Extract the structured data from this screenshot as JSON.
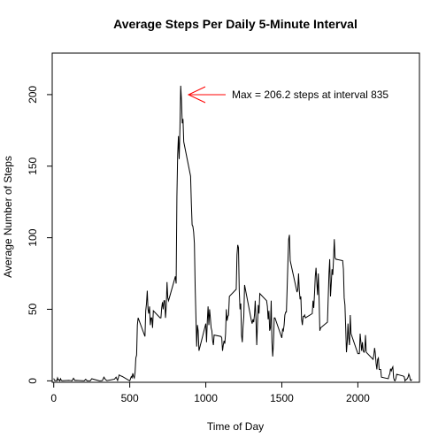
{
  "chart_data": {
    "type": "line",
    "title": "Average Steps Per Daily 5-Minute Interval",
    "xlabel": "Time of Day",
    "ylabel": "Average Number of Steps",
    "annotation": {
      "text": "Max = 206.2 steps at interval 835",
      "color": "#ff0000"
    },
    "color": "#000000",
    "xlim": [
      -10,
      2405
    ],
    "ylim": [
      -1,
      229
    ],
    "xticks": [
      0,
      500,
      1000,
      1500,
      2000
    ],
    "yticks": [
      0,
      50,
      100,
      150,
      200
    ],
    "x": [
      0,
      5,
      10,
      15,
      20,
      25,
      30,
      35,
      40,
      45,
      50,
      55,
      100,
      110,
      120,
      130,
      140,
      150,
      200,
      210,
      220,
      230,
      240,
      250,
      300,
      310,
      320,
      330,
      340,
      350,
      400,
      410,
      420,
      430,
      440,
      450,
      500,
      505,
      510,
      515,
      520,
      525,
      530,
      535,
      540,
      545,
      550,
      555,
      600,
      605,
      610,
      615,
      620,
      625,
      630,
      635,
      640,
      645,
      650,
      655,
      700,
      705,
      710,
      715,
      720,
      725,
      730,
      735,
      740,
      745,
      750,
      755,
      800,
      805,
      810,
      815,
      820,
      825,
      830,
      835,
      840,
      845,
      850,
      855,
      900,
      905,
      910,
      915,
      920,
      925,
      930,
      935,
      940,
      945,
      950,
      955,
      1000,
      1005,
      1010,
      1015,
      1020,
      1025,
      1030,
      1035,
      1040,
      1045,
      1050,
      1055,
      1100,
      1105,
      1110,
      1115,
      1120,
      1125,
      1130,
      1135,
      1140,
      1145,
      1150,
      1155,
      1200,
      1205,
      1210,
      1215,
      1220,
      1225,
      1230,
      1235,
      1240,
      1245,
      1250,
      1255,
      1300,
      1305,
      1310,
      1315,
      1320,
      1325,
      1330,
      1335,
      1340,
      1345,
      1350,
      1355,
      1400,
      1405,
      1410,
      1415,
      1420,
      1425,
      1430,
      1435,
      1440,
      1445,
      1450,
      1455,
      1500,
      1505,
      1510,
      1515,
      1520,
      1525,
      1530,
      1535,
      1540,
      1545,
      1550,
      1555,
      1600,
      1605,
      1610,
      1615,
      1620,
      1625,
      1630,
      1635,
      1640,
      1645,
      1650,
      1655,
      1700,
      1705,
      1710,
      1715,
      1720,
      1725,
      1730,
      1735,
      1740,
      1745,
      1750,
      1755,
      1800,
      1805,
      1810,
      1815,
      1820,
      1825,
      1830,
      1835,
      1840,
      1845,
      1850,
      1855,
      1900,
      1905,
      1910,
      1915,
      1920,
      1925,
      1930,
      1935,
      1940,
      1945,
      1950,
      1955,
      2000,
      2005,
      2010,
      2015,
      2020,
      2025,
      2030,
      2035,
      2040,
      2045,
      2050,
      2055,
      2100,
      2105,
      2110,
      2115,
      2120,
      2125,
      2130,
      2135,
      2140,
      2145,
      2150,
      2155,
      2200,
      2205,
      2210,
      2215,
      2220,
      2225,
      2230,
      2235,
      2240,
      2245,
      2250,
      2255,
      2300,
      2305,
      2310,
      2315,
      2320,
      2325,
      2330,
      2335,
      2340,
      2345,
      2350,
      2355
    ],
    "values": [
      1.7,
      0.3,
      0.1,
      0.2,
      0,
      2.1,
      0.5,
      0.9,
      0,
      1.5,
      0.3,
      0.1,
      0.3,
      0.2,
      0,
      1.8,
      0.2,
      0.3,
      0,
      1.1,
      0,
      0,
      0,
      1.5,
      0,
      0,
      0.2,
      2.6,
      0.9,
      0.2,
      1.2,
      2.6,
      0.3,
      4.1,
      3.5,
      3.1,
      0,
      1.5,
      3,
      2.2,
      5.3,
      3,
      2,
      6,
      16,
      18,
      39,
      44,
      31,
      49,
      54,
      63,
      50,
      47,
      52,
      39,
      44,
      44,
      37,
      49,
      44,
      44,
      51,
      55,
      50,
      56,
      56,
      44,
      52,
      69,
      58,
      56,
      73,
      68,
      129,
      158,
      171,
      155,
      177,
      206.2,
      196,
      180,
      183,
      167,
      143,
      124,
      109,
      108,
      104,
      96,
      66,
      45,
      24,
      39,
      35,
      21,
      40,
      27,
      42,
      52,
      39,
      50,
      44,
      37,
      35,
      28,
      25,
      32,
      31,
      30,
      21,
      25,
      28,
      26,
      33,
      50,
      42,
      45,
      46,
      59,
      64,
      88,
      95,
      93,
      63,
      50,
      54,
      32,
      27,
      38,
      45,
      67,
      42,
      40,
      43,
      41,
      46,
      56,
      43,
      25,
      40,
      53,
      47,
      61,
      56,
      52,
      43,
      49,
      35,
      37,
      56,
      27,
      17,
      26,
      44,
      44,
      30,
      36,
      35,
      39,
      46,
      48,
      48,
      65,
      83,
      99,
      102,
      84,
      62,
      64,
      75,
      63,
      57,
      59,
      43,
      39,
      45,
      45,
      46,
      44,
      47,
      56,
      51,
      61,
      73,
      79,
      69,
      60,
      75,
      57,
      35,
      37,
      41,
      58,
      75,
      85,
      59,
      68,
      78,
      74,
      85,
      99,
      86,
      85,
      84,
      78,
      58,
      53,
      37,
      20,
      27,
      40,
      30,
      25,
      46,
      33,
      19,
      19,
      19,
      33,
      27,
      21,
      27,
      21,
      20,
      21,
      32,
      20,
      15,
      18,
      23,
      19,
      12,
      8,
      15,
      16,
      8,
      8,
      8,
      2.6,
      1.5,
      3.7,
      4.8,
      8.5,
      7,
      8.7,
      9.8,
      2.2,
      0.3,
      0.1,
      1.6,
      4.6,
      3.3,
      2.8,
      0,
      0.8,
      1,
      1.6,
      2.6,
      4.7,
      3.3,
      0.6,
      0.2,
      1.1
    ]
  }
}
